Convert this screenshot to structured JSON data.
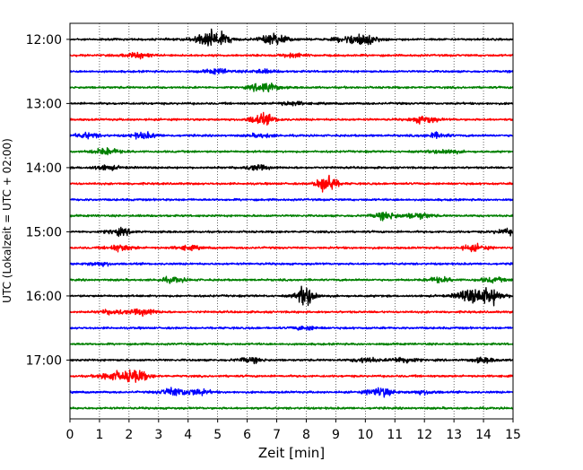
{
  "chart_data": {
    "type": "line",
    "title": "",
    "xlabel": "Zeit  [min]",
    "ylabel": "UTC (Lokalzeit = UTC + 02:00)",
    "xlim": [
      0,
      15
    ],
    "x_ticks": [
      0,
      1,
      2,
      3,
      4,
      5,
      6,
      7,
      8,
      9,
      10,
      11,
      12,
      13,
      14,
      15
    ],
    "x_tick_labels": [
      "0",
      "1",
      "2",
      "3",
      "4",
      "5",
      "6",
      "7",
      "8",
      "9",
      "10",
      "11",
      "12",
      "13",
      "14",
      "15"
    ],
    "y_ticks": [
      "12:00",
      "13:00",
      "14:00",
      "15:00",
      "16:00",
      "17:00"
    ],
    "ylim": [
      "11:45",
      "17:55"
    ],
    "y_direction": "top-to-bottom",
    "grid": "vertical dotted at each minute",
    "colors": [
      "#000000",
      "#ff0000",
      "#0000ff",
      "#008000"
    ],
    "traces": [
      {
        "start": "12:00",
        "color": "#000000",
        "events": [
          {
            "t": 4.5,
            "amp": 0.35
          },
          {
            "t": 5.0,
            "amp": 0.6
          },
          {
            "t": 6.9,
            "amp": 0.5
          },
          {
            "t": 9.4,
            "amp": 0.25
          },
          {
            "t": 10.0,
            "amp": 0.45
          }
        ]
      },
      {
        "start": "12:15",
        "color": "#ff0000",
        "events": [
          {
            "t": 2.3,
            "amp": 0.2
          },
          {
            "t": 7.6,
            "amp": 0.15
          }
        ]
      },
      {
        "start": "12:30",
        "color": "#0000ff",
        "events": [
          {
            "t": 5.0,
            "amp": 0.2
          },
          {
            "t": 6.5,
            "amp": 0.15
          }
        ]
      },
      {
        "start": "12:45",
        "color": "#008000",
        "events": [
          {
            "t": 6.6,
            "amp": 0.45
          }
        ]
      },
      {
        "start": "13:00",
        "color": "#000000",
        "events": [
          {
            "t": 7.5,
            "amp": 0.15
          }
        ]
      },
      {
        "start": "13:15",
        "color": "#ff0000",
        "events": [
          {
            "t": 6.5,
            "amp": 0.45
          },
          {
            "t": 12.0,
            "amp": 0.3
          }
        ]
      },
      {
        "start": "13:30",
        "color": "#0000ff",
        "events": [
          {
            "t": 0.6,
            "amp": 0.2
          },
          {
            "t": 2.5,
            "amp": 0.25
          },
          {
            "t": 6.5,
            "amp": 0.15
          },
          {
            "t": 12.4,
            "amp": 0.2
          }
        ]
      },
      {
        "start": "13:45",
        "color": "#008000",
        "events": [
          {
            "t": 1.2,
            "amp": 0.3
          },
          {
            "t": 12.7,
            "amp": 0.2
          }
        ]
      },
      {
        "start": "14:00",
        "color": "#000000",
        "events": [
          {
            "t": 1.2,
            "amp": 0.2
          },
          {
            "t": 6.3,
            "amp": 0.2
          }
        ]
      },
      {
        "start": "14:15",
        "color": "#ff0000",
        "events": [
          {
            "t": 8.7,
            "amp": 0.9
          }
        ]
      },
      {
        "start": "14:30",
        "color": "#0000ff",
        "events": []
      },
      {
        "start": "14:45",
        "color": "#008000",
        "events": [
          {
            "t": 10.7,
            "amp": 0.3
          },
          {
            "t": 11.8,
            "amp": 0.25
          }
        ]
      },
      {
        "start": "15:00",
        "color": "#000000",
        "events": [
          {
            "t": 1.7,
            "amp": 0.25
          },
          {
            "t": 14.8,
            "amp": 0.2
          }
        ]
      },
      {
        "start": "15:15",
        "color": "#ff0000",
        "events": [
          {
            "t": 1.7,
            "amp": 0.25
          },
          {
            "t": 4.0,
            "amp": 0.15
          },
          {
            "t": 13.7,
            "amp": 0.25
          }
        ]
      },
      {
        "start": "15:30",
        "color": "#0000ff",
        "events": [
          {
            "t": 1.0,
            "amp": 0.15
          }
        ]
      },
      {
        "start": "15:45",
        "color": "#008000",
        "events": [
          {
            "t": 3.5,
            "amp": 0.2
          },
          {
            "t": 12.5,
            "amp": 0.2
          },
          {
            "t": 14.3,
            "amp": 0.2
          }
        ]
      },
      {
        "start": "16:00",
        "color": "#000000",
        "events": [
          {
            "t": 8.0,
            "amp": 0.9
          },
          {
            "t": 13.5,
            "amp": 0.5
          },
          {
            "t": 14.2,
            "amp": 0.7
          }
        ]
      },
      {
        "start": "16:15",
        "color": "#ff0000",
        "events": [
          {
            "t": 1.5,
            "amp": 0.2
          },
          {
            "t": 2.5,
            "amp": 0.25
          }
        ]
      },
      {
        "start": "16:30",
        "color": "#0000ff",
        "events": [
          {
            "t": 8.0,
            "amp": 0.15
          }
        ]
      },
      {
        "start": "16:45",
        "color": "#008000",
        "events": []
      },
      {
        "start": "17:00",
        "color": "#000000",
        "events": [
          {
            "t": 6.1,
            "amp": 0.2
          },
          {
            "t": 10.0,
            "amp": 0.2
          },
          {
            "t": 11.3,
            "amp": 0.25
          },
          {
            "t": 14.0,
            "amp": 0.2
          }
        ]
      },
      {
        "start": "17:15",
        "color": "#ff0000",
        "events": [
          {
            "t": 1.4,
            "amp": 0.35
          },
          {
            "t": 2.2,
            "amp": 0.55
          }
        ]
      },
      {
        "start": "17:30",
        "color": "#0000ff",
        "events": [
          {
            "t": 3.5,
            "amp": 0.35
          },
          {
            "t": 4.3,
            "amp": 0.25
          },
          {
            "t": 10.5,
            "amp": 0.4
          },
          {
            "t": 12.0,
            "amp": 0.15
          }
        ]
      },
      {
        "start": "17:45",
        "color": "#008000",
        "events": []
      }
    ]
  }
}
